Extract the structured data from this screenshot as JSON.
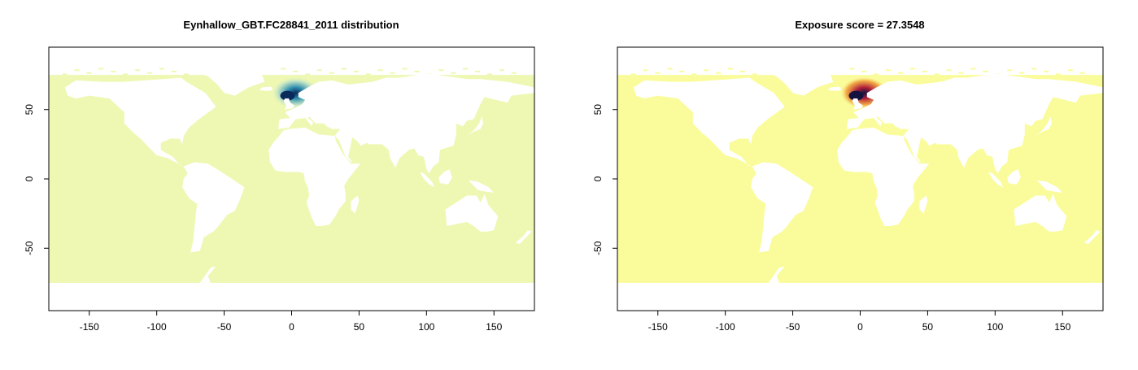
{
  "chart_data": [
    {
      "type": "heatmap",
      "title": "Eynhallow_GBT.FC28841_2011 distribution",
      "xlabel": "",
      "ylabel": "",
      "xlim": [
        -180,
        180
      ],
      "ylim": [
        -95,
        95
      ],
      "x_ticks": [
        -150,
        -100,
        -50,
        0,
        50,
        100,
        150
      ],
      "y_ticks": [
        -50,
        0,
        50
      ],
      "x_tick_labels": [
        "-150",
        "-100",
        "-50",
        "0",
        "50",
        "100",
        "150"
      ],
      "y_tick_labels": [
        "-50",
        "0",
        "50"
      ],
      "data_extent": {
        "lon": [
          -180,
          180
        ],
        "lat": [
          -75,
          75
        ]
      },
      "background_color": "#eef8b3",
      "hotspot": {
        "lon": -3,
        "lat": 60,
        "peak_color": "#0b2a5c",
        "mid_color": "#2f8fb0",
        "edge_color": "#bfe3c8"
      },
      "grid": false,
      "legend": "none"
    },
    {
      "type": "heatmap",
      "title": "Exposure score = 27.3548",
      "xlabel": "",
      "ylabel": "",
      "xlim": [
        -180,
        180
      ],
      "ylim": [
        -95,
        95
      ],
      "x_ticks": [
        -150,
        -100,
        -50,
        0,
        50,
        100,
        150
      ],
      "y_ticks": [
        -50,
        0,
        50
      ],
      "x_tick_labels": [
        "-150",
        "-100",
        "-50",
        "0",
        "50",
        "100",
        "150"
      ],
      "y_tick_labels": [
        "-50",
        "0",
        "50"
      ],
      "data_extent": {
        "lon": [
          -180,
          180
        ],
        "lat": [
          -75,
          75
        ]
      },
      "background_color": "#fafc9c",
      "hotspot": {
        "lon": -3,
        "lat": 60,
        "peak_color": "#14123f",
        "mid_color": "#b3203a",
        "edge_color": "#f2a23a"
      },
      "grid": false,
      "legend": "none"
    }
  ]
}
